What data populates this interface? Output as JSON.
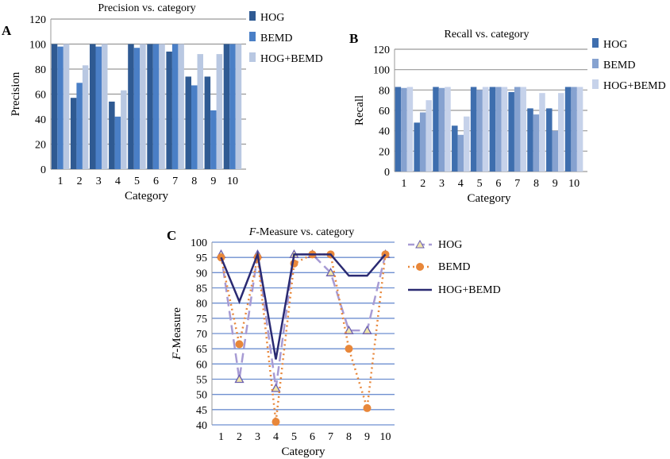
{
  "chart_data": [
    {
      "panel": "A",
      "type": "bar",
      "title": "Precision vs. category",
      "xlabel": "Category",
      "ylabel": "Precision",
      "ylim": [
        0,
        120
      ],
      "yticks": [
        0,
        20,
        40,
        60,
        80,
        100,
        120
      ],
      "grid": true,
      "legend": "right",
      "categories": [
        "1",
        "2",
        "3",
        "4",
        "5",
        "6",
        "7",
        "8",
        "9",
        "10"
      ],
      "series": [
        {
          "name": "HOG",
          "color": "#2f5a92",
          "values": [
            100,
            57,
            100,
            54,
            100,
            100,
            94,
            74,
            74,
            100
          ]
        },
        {
          "name": "BEMD",
          "color": "#4a7fc6",
          "values": [
            98,
            69,
            98,
            42,
            97,
            100,
            100,
            67,
            47,
            100
          ]
        },
        {
          "name": "HOG+BEMD",
          "color": "#b9c8e2",
          "values": [
            100,
            83,
            100,
            63,
            100,
            100,
            100,
            92,
            92,
            100
          ]
        }
      ]
    },
    {
      "panel": "B",
      "type": "bar",
      "title": "Recall vs. category",
      "xlabel": "Category",
      "ylabel": "Recall",
      "ylim": [
        0,
        120
      ],
      "yticks": [
        0,
        20,
        40,
        60,
        80,
        100,
        120
      ],
      "grid": true,
      "legend": "right",
      "categories": [
        "1",
        "2",
        "3",
        "4",
        "5",
        "6",
        "7",
        "8",
        "9",
        "10"
      ],
      "series": [
        {
          "name": "HOG",
          "color": "#3e6eae",
          "values": [
            83,
            48,
            83,
            45,
            83,
            83,
            78,
            62,
            62,
            83
          ]
        },
        {
          "name": "BEMD",
          "color": "#86a2d0",
          "values": [
            82,
            58,
            82,
            36,
            80,
            83,
            83,
            56,
            40,
            83
          ]
        },
        {
          "name": "HOG+BEMD",
          "color": "#c6d2ea",
          "values": [
            83,
            70,
            83,
            54,
            83,
            83,
            83,
            77,
            77,
            83
          ]
        }
      ]
    },
    {
      "panel": "C",
      "type": "line",
      "title_italic": "F",
      "title": "-Measure vs. category",
      "xlabel": "Category",
      "ylabel_italic": "F",
      "ylabel": "-Measure",
      "ylim": [
        40,
        100
      ],
      "yticks": [
        40,
        45,
        50,
        55,
        60,
        65,
        70,
        75,
        80,
        85,
        90,
        95,
        100
      ],
      "grid": true,
      "legend": "right",
      "categories": [
        "1",
        "2",
        "3",
        "4",
        "5",
        "6",
        "7",
        "8",
        "9",
        "10"
      ],
      "series": [
        {
          "name": "HOG",
          "color": "#a79bd4",
          "marker": "triangle",
          "values": [
            96,
            55,
            96,
            52,
            96,
            96,
            90,
            71,
            71,
            96
          ]
        },
        {
          "name": "BEMD",
          "color": "#e8873a",
          "marker": "circle",
          "values": [
            95,
            66.5,
            95,
            41,
            93,
            96,
            96,
            65,
            45.5,
            96
          ]
        },
        {
          "name": "HOG+BEMD",
          "color": "#2a2a72",
          "marker": "none",
          "values": [
            95,
            80.5,
            96,
            61.5,
            96,
            96,
            96,
            89,
            89,
            96
          ]
        }
      ]
    }
  ]
}
